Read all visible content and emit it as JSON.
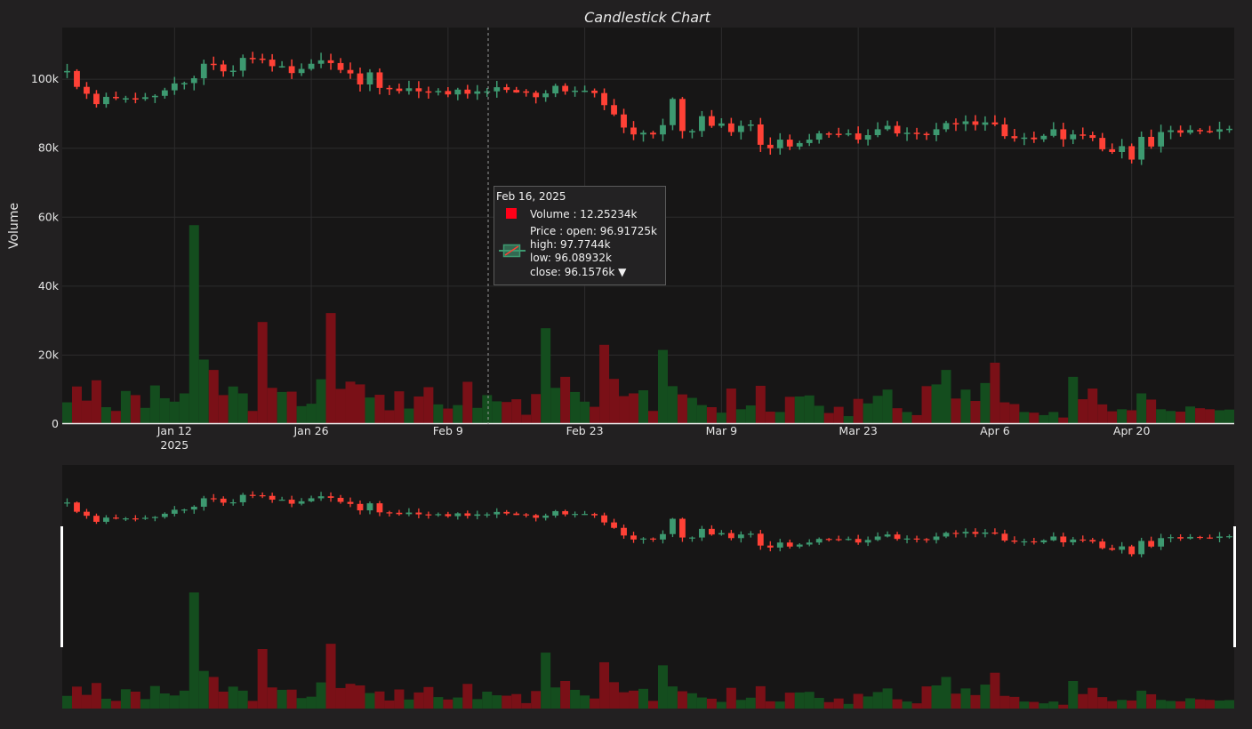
{
  "chart_data": {
    "type": "candlestick",
    "title": "Candlestick Chart",
    "ylabel": "Volume",
    "ylim": [
      0,
      115000
    ],
    "yticks": [
      {
        "value": 0,
        "label": "0"
      },
      {
        "value": 20000,
        "label": "20k"
      },
      {
        "value": 40000,
        "label": "40k"
      },
      {
        "value": 60000,
        "label": "60k"
      },
      {
        "value": 80000,
        "label": "80k"
      },
      {
        "value": 100000,
        "label": "100k"
      }
    ],
    "xlim": [
      "2025-01-01",
      "2025-04-30"
    ],
    "xticks": [
      {
        "date": "2025-01-12",
        "label": "Jan 12",
        "sublabel": "2025"
      },
      {
        "date": "2025-01-26",
        "label": "Jan 26",
        "sublabel": ""
      },
      {
        "date": "2025-02-09",
        "label": "Feb 9",
        "sublabel": ""
      },
      {
        "date": "2025-02-23",
        "label": "Feb 23",
        "sublabel": ""
      },
      {
        "date": "2025-03-09",
        "label": "Mar 9",
        "sublabel": ""
      },
      {
        "date": "2025-03-23",
        "label": "Mar 23",
        "sublabel": ""
      },
      {
        "date": "2025-04-06",
        "label": "Apr 6",
        "sublabel": ""
      },
      {
        "date": "2025-04-20",
        "label": "Apr 20",
        "sublabel": ""
      }
    ],
    "colors": {
      "up_candle": "#3d9970",
      "down_candle": "#ff4136",
      "up_volume": "#144d1e",
      "down_volume": "#7a1017",
      "grid": "#2d2c2d",
      "plot_bg": "#171616",
      "paper_bg": "#222021"
    },
    "grid": true,
    "range_slider": true,
    "series": [
      {
        "name": "Price",
        "type": "candlestick",
        "date": [
          "2025-01-01",
          "2025-01-02",
          "2025-01-03",
          "2025-01-04",
          "2025-01-05",
          "2025-01-06",
          "2025-01-07",
          "2025-01-08",
          "2025-01-09",
          "2025-01-10",
          "2025-01-11",
          "2025-01-12",
          "2025-01-13",
          "2025-01-14",
          "2025-01-15",
          "2025-01-16",
          "2025-01-17",
          "2025-01-18",
          "2025-01-19",
          "2025-01-20",
          "2025-01-21",
          "2025-01-22",
          "2025-01-23",
          "2025-01-24",
          "2025-01-25",
          "2025-01-26",
          "2025-01-27",
          "2025-01-28",
          "2025-01-29",
          "2025-01-30",
          "2025-01-31",
          "2025-02-01",
          "2025-02-02",
          "2025-02-03",
          "2025-02-04",
          "2025-02-05",
          "2025-02-06",
          "2025-02-07",
          "2025-02-08",
          "2025-02-09",
          "2025-02-10",
          "2025-02-11",
          "2025-02-12",
          "2025-02-13",
          "2025-02-14",
          "2025-02-15",
          "2025-02-16",
          "2025-02-17",
          "2025-02-18",
          "2025-02-19",
          "2025-02-20",
          "2025-02-21",
          "2025-02-22",
          "2025-02-23",
          "2025-02-24",
          "2025-02-25",
          "2025-02-26",
          "2025-02-27",
          "2025-02-28",
          "2025-03-01",
          "2025-03-02",
          "2025-03-03",
          "2025-03-04",
          "2025-03-05",
          "2025-03-06",
          "2025-03-07",
          "2025-03-08",
          "2025-03-09",
          "2025-03-10",
          "2025-03-11",
          "2025-03-12",
          "2025-03-13",
          "2025-03-14",
          "2025-03-15",
          "2025-03-16",
          "2025-03-17",
          "2025-03-18",
          "2025-03-19",
          "2025-03-20",
          "2025-03-21",
          "2025-03-22",
          "2025-03-23",
          "2025-03-24",
          "2025-03-25",
          "2025-03-26",
          "2025-03-27",
          "2025-03-28",
          "2025-03-29",
          "2025-03-30",
          "2025-03-31",
          "2025-04-01",
          "2025-04-02",
          "2025-04-03",
          "2025-04-04",
          "2025-04-05",
          "2025-04-06",
          "2025-04-07",
          "2025-04-08",
          "2025-04-09",
          "2025-04-10",
          "2025-04-11",
          "2025-04-12",
          "2025-04-13",
          "2025-04-14",
          "2025-04-15",
          "2025-04-16",
          "2025-04-17",
          "2025-04-18",
          "2025-04-19",
          "2025-04-20",
          "2025-04-21",
          "2025-04-22",
          "2025-04-23",
          "2025-04-24",
          "2025-04-25",
          "2025-04-26",
          "2025-04-27",
          "2025-04-28",
          "2025-04-29",
          "2025-04-30"
        ],
        "open": [
          102000,
          102400,
          97800,
          95800,
          92800,
          94900,
          94500,
          94500,
          94300,
          94800,
          95200,
          96800,
          98800,
          98900,
          100300,
          104500,
          104300,
          102300,
          102500,
          106200,
          106000,
          105700,
          103800,
          103800,
          101800,
          103000,
          104500,
          105500,
          104700,
          102700,
          101700,
          98500,
          102000,
          97500,
          97300,
          96600,
          97400,
          96500,
          96300,
          96600,
          95600,
          97000,
          95800,
          96500,
          96500,
          97700,
          96917,
          96500,
          96100,
          94800,
          95900,
          98100,
          96500,
          96700,
          96700,
          96000,
          92500,
          89800,
          86000,
          84000,
          84500,
          84000,
          86700,
          94300,
          85000,
          85000,
          89300,
          86500,
          87200,
          84700,
          86500,
          86900,
          81000,
          80000,
          82500,
          80500,
          81500,
          82500,
          84300,
          84200,
          84100,
          84300,
          82500,
          83800,
          85500,
          86500,
          84300,
          84500,
          84200,
          83800,
          85500,
          87300,
          87000,
          87800,
          86800,
          87500,
          86900,
          83500,
          82900,
          83100,
          82600,
          83600,
          85500,
          82600,
          84000,
          83800,
          83000,
          79700,
          78900,
          80600,
          76700,
          83300,
          80500,
          84700,
          85200,
          84500,
          85300,
          85000,
          84800,
          85500
        ]
      },
      {
        "name": "Volume",
        "type": "bar"
      }
    ]
  },
  "hover": {
    "date": "Feb 16, 2025",
    "volume_line": "Volume : 12.25234k",
    "price_lines": [
      "Price : open: 96.91725k",
      "high: 97.7744k",
      "low: 96.08932k",
      "close: 96.1576k  ▼"
    ]
  }
}
